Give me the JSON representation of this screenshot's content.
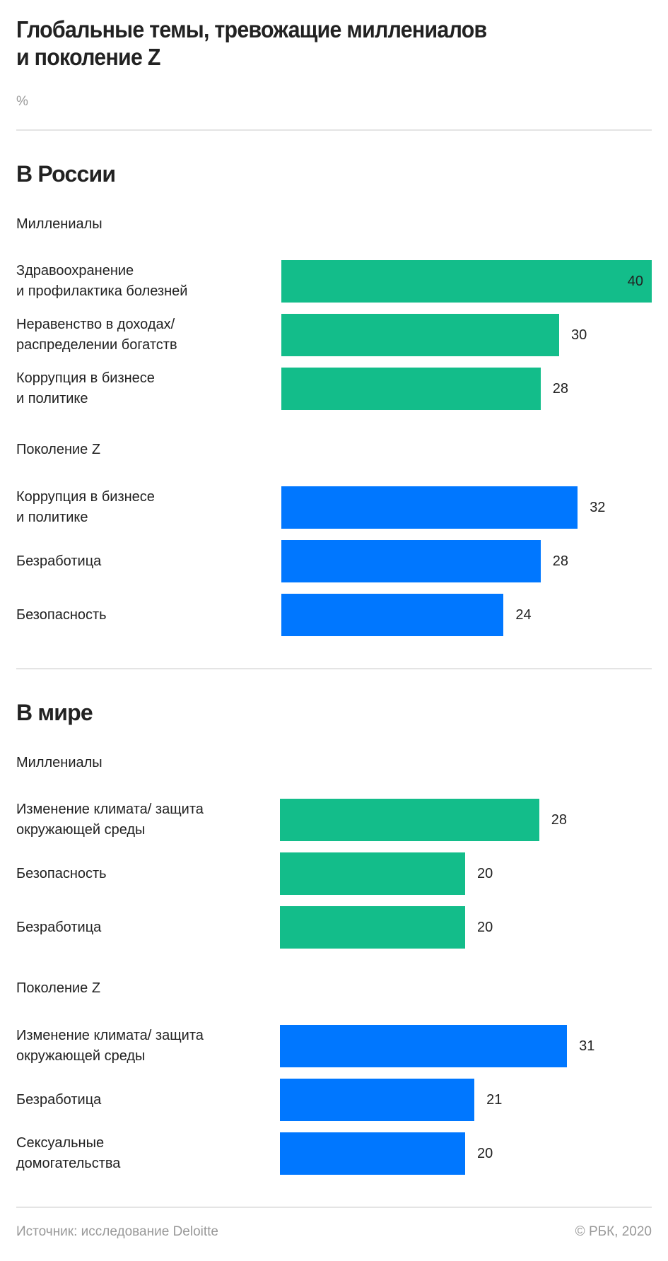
{
  "title": "Глобальные темы, тревожащие миллениалов\nи поколение Z",
  "unit": "%",
  "colors": {
    "millennials": "#13bd8a",
    "genz": "#0077ff"
  },
  "chart_data": {
    "type": "bar",
    "orientation": "horizontal",
    "xlim": [
      0,
      40
    ],
    "sections": [
      {
        "title": "В России",
        "groups": [
          {
            "name": "Миллениалы",
            "color": "#13bd8a",
            "categories": [
              "Здравоохранение\nи профилактика болезней",
              "Неравенство в доходах/\nраспределении богатств",
              "Коррупция в бизнесе\nи политике"
            ],
            "values": [
              40,
              30,
              28
            ]
          },
          {
            "name": "Поколение Z",
            "color": "#0077ff",
            "categories": [
              "Коррупция в бизнесе\nи политике",
              "Безработица",
              "Безопасность"
            ],
            "values": [
              32,
              28,
              24
            ]
          }
        ]
      },
      {
        "title": "В мире",
        "groups": [
          {
            "name": "Миллениалы",
            "color": "#13bd8a",
            "categories": [
              "Изменение климата/ защита\nокружающей среды",
              "Безопасность",
              "Безработица"
            ],
            "values": [
              28,
              20,
              20
            ]
          },
          {
            "name": "Поколение Z",
            "color": "#0077ff",
            "categories": [
              "Изменение климата/ защита\nокружающей среды",
              "Безработица",
              "Сексуальные\nдомогательства"
            ],
            "values": [
              31,
              21,
              20
            ]
          }
        ]
      }
    ]
  },
  "footer": {
    "source": "Источник: исследование Deloitte",
    "copyright": "© РБК, 2020"
  }
}
